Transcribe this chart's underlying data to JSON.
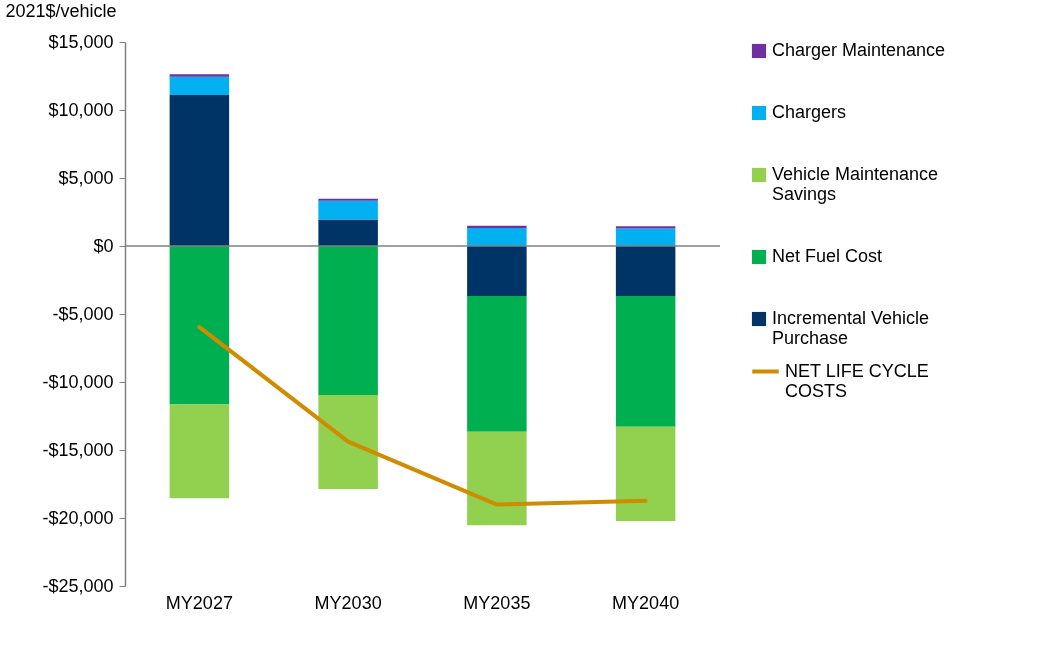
{
  "chart_data": {
    "type": "bar",
    "stacked": true,
    "ylabel": "2021$/vehicle",
    "categories": [
      "MY2027",
      "MY2030",
      "MY2035",
      "MY2040"
    ],
    "ylim": [
      -25000,
      15000
    ],
    "yticks": [
      {
        "value": -25000,
        "label": "-$25,000"
      },
      {
        "value": -20000,
        "label": "-$20,000"
      },
      {
        "value": -15000,
        "label": "-$15,000"
      },
      {
        "value": -10000,
        "label": "-$10,000"
      },
      {
        "value": -5000,
        "label": "-$5,000"
      },
      {
        "value": 0,
        "label": "$0"
      },
      {
        "value": 5000,
        "label": "$5,000"
      },
      {
        "value": 10000,
        "label": "$10,000"
      },
      {
        "value": 15000,
        "label": "$15,000"
      }
    ],
    "grid": false,
    "legend": "right",
    "ref_lines": [
      {
        "axis": "y",
        "value": 0,
        "color": "#808080"
      }
    ],
    "series": [
      {
        "name": "Incremental Vehicle Purchase",
        "color": "#003366",
        "values": [
          11100,
          1950,
          -3680,
          -3680
        ]
      },
      {
        "name": "Net Fuel Cost",
        "color": "#00b050",
        "values": [
          -11660,
          -10950,
          -9970,
          -9610
        ]
      },
      {
        "name": "Vehicle Maintenance Savings",
        "color": "#92d050",
        "values": [
          -6880,
          -6910,
          -6880,
          -6930
        ]
      },
      {
        "name": "Chargers",
        "color": "#00b0f0",
        "values": [
          1350,
          1370,
          1320,
          1290
        ]
      },
      {
        "name": "Charger Maintenance",
        "color": "#7030a0",
        "values": [
          170,
          160,
          170,
          170
        ]
      },
      {
        "name": "NET LIFE CYCLE COSTS",
        "type": "line",
        "color": "#d08c00",
        "values": [
          -5960,
          -14380,
          -19010,
          -18730
        ]
      }
    ]
  }
}
